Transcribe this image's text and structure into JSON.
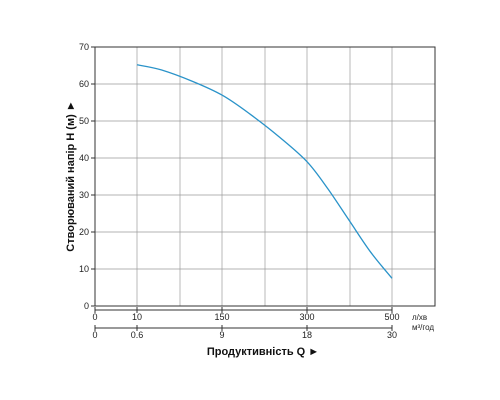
{
  "chart_data": {
    "type": "line",
    "ylabel": "Створюваний напір H (м) ►",
    "xlabel": "Продуктивність  Q ►",
    "ylim": [
      0,
      70
    ],
    "y_ticks": [
      "0",
      "10",
      "20",
      "30",
      "40",
      "50",
      "60",
      "70"
    ],
    "x_axis_lmin": {
      "unit": "л/хв",
      "ticks": [
        {
          "value": 0,
          "label": "0"
        },
        {
          "value": 10,
          "label": "10"
        },
        {
          "value": 150,
          "label": "150"
        },
        {
          "value": 300,
          "label": "300"
        },
        {
          "value": 500,
          "label": "500"
        }
      ]
    },
    "x_axis_m3h": {
      "unit": "м³/год",
      "ticks": [
        {
          "value": 0,
          "label": "0"
        },
        {
          "value": 0.6,
          "label": "0.6"
        },
        {
          "value": 9,
          "label": "9"
        },
        {
          "value": 18,
          "label": "18"
        },
        {
          "value": 30,
          "label": "30"
        }
      ]
    },
    "grid": true,
    "series": [
      {
        "color": "#2a93c9",
        "points": [
          [
            10,
            65.2
          ],
          [
            50,
            63.8
          ],
          [
            100,
            60.8
          ],
          [
            150,
            57.0
          ],
          [
            200,
            51.8
          ],
          [
            250,
            45.8
          ],
          [
            300,
            39.0
          ],
          [
            350,
            31.5
          ],
          [
            400,
            23.0
          ],
          [
            450,
            14.5
          ],
          [
            500,
            7.5
          ]
        ]
      }
    ]
  }
}
